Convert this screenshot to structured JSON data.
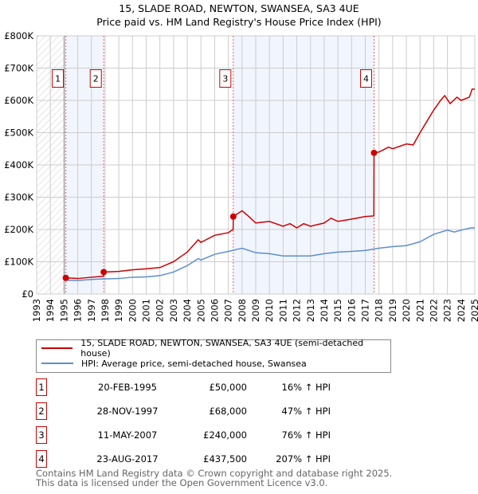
{
  "chart_data": {
    "type": "line",
    "title": "15, SLADE ROAD, NEWTON, SWANSEA, SA3 4UE",
    "subtitle": "Price paid vs. HM Land Registry's House Price Index (HPI)",
    "xlim": [
      1993,
      2025
    ],
    "ylim": [
      0,
      800000
    ],
    "y_ticks": [
      "£0",
      "£100K",
      "£200K",
      "£300K",
      "£400K",
      "£500K",
      "£600K",
      "£700K",
      "£800K"
    ],
    "x_ticks": [
      "1993",
      "1994",
      "1995",
      "1996",
      "1997",
      "1998",
      "1999",
      "2000",
      "2001",
      "2002",
      "2003",
      "2004",
      "2005",
      "2006",
      "2007",
      "2008",
      "2009",
      "2010",
      "2011",
      "2012",
      "2013",
      "2014",
      "2015",
      "2016",
      "2017",
      "2018",
      "2019",
      "2020",
      "2021",
      "2022",
      "2023",
      "2024",
      "2025"
    ],
    "grid": true,
    "series": [
      {
        "name": "15, SLADE ROAD, NEWTON, SWANSEA, SA3 4UE (semi-detached house)",
        "color": "#cc0000",
        "x": [
          1995.13,
          1996,
          1997,
          1997.89,
          1997.9,
          1999,
          2000,
          2001,
          2002,
          2003,
          2004,
          2004.8,
          2005,
          2006,
          2007,
          2007.35,
          2007.36,
          2008,
          2008.5,
          2009,
          2010,
          2011,
          2011.5,
          2012,
          2012.5,
          2013,
          2014,
          2014.5,
          2015,
          2016,
          2017,
          2017.63,
          2017.64,
          2018,
          2018.7,
          2019,
          2020,
          2020.5,
          2021,
          2021.5,
          2022,
          2022.5,
          2022.8,
          2023.2,
          2023.7,
          2024,
          2024.6,
          2024.8,
          2025
        ],
        "y": [
          50000,
          48000,
          52000,
          55000,
          68000,
          70000,
          75000,
          78000,
          82000,
          100000,
          130000,
          168000,
          160000,
          182000,
          190000,
          200000,
          240000,
          258000,
          240000,
          220000,
          225000,
          210000,
          218000,
          205000,
          218000,
          210000,
          220000,
          235000,
          225000,
          232000,
          240000,
          242000,
          437500,
          440000,
          455000,
          450000,
          465000,
          462000,
          500000,
          535000,
          570000,
          600000,
          615000,
          590000,
          610000,
          600000,
          610000,
          635000,
          635000
        ]
      },
      {
        "name": "HPI: Average price, semi-detached house, Swansea",
        "color": "#5b8fd0",
        "x": [
          1995.13,
          1996,
          1997,
          1998,
          1999,
          2000,
          2001,
          2002,
          2003,
          2004,
          2004.8,
          2005,
          2006,
          2007,
          2008,
          2009,
          2010,
          2011,
          2012,
          2013,
          2014,
          2015,
          2016,
          2017,
          2018,
          2019,
          2020,
          2021,
          2022,
          2023,
          2023.5,
          2024,
          2024.7,
          2025
        ],
        "y": [
          43000,
          42000,
          45000,
          47000,
          48000,
          52000,
          53000,
          57000,
          68000,
          88000,
          110000,
          105000,
          123000,
          132000,
          142000,
          128000,
          125000,
          118000,
          118000,
          118000,
          125000,
          130000,
          132000,
          135000,
          142000,
          147000,
          150000,
          162000,
          185000,
          198000,
          192000,
          198000,
          205000,
          205000
        ]
      }
    ],
    "sales": [
      {
        "label": "1",
        "x": 1995.13,
        "y": 50000
      },
      {
        "label": "2",
        "x": 1997.9,
        "y": 68000
      },
      {
        "label": "3",
        "x": 2007.36,
        "y": 240000
      },
      {
        "label": "4",
        "x": 2017.64,
        "y": 437500
      }
    ],
    "legend_position": "bottom"
  },
  "transactions": [
    {
      "num": "1",
      "date": "20-FEB-1995",
      "price": "£50,000",
      "hpi": "16% ↑ HPI"
    },
    {
      "num": "2",
      "date": "28-NOV-1997",
      "price": "£68,000",
      "hpi": "47% ↑ HPI"
    },
    {
      "num": "3",
      "date": "11-MAY-2007",
      "price": "£240,000",
      "hpi": "76% ↑ HPI"
    },
    {
      "num": "4",
      "date": "23-AUG-2017",
      "price": "£437,500",
      "hpi": "207% ↑ HPI"
    }
  ],
  "footer": {
    "line1": "Contains HM Land Registry data © Crown copyright and database right 2025.",
    "line2": "This data is licensed under the Open Government Licence v3.0."
  }
}
